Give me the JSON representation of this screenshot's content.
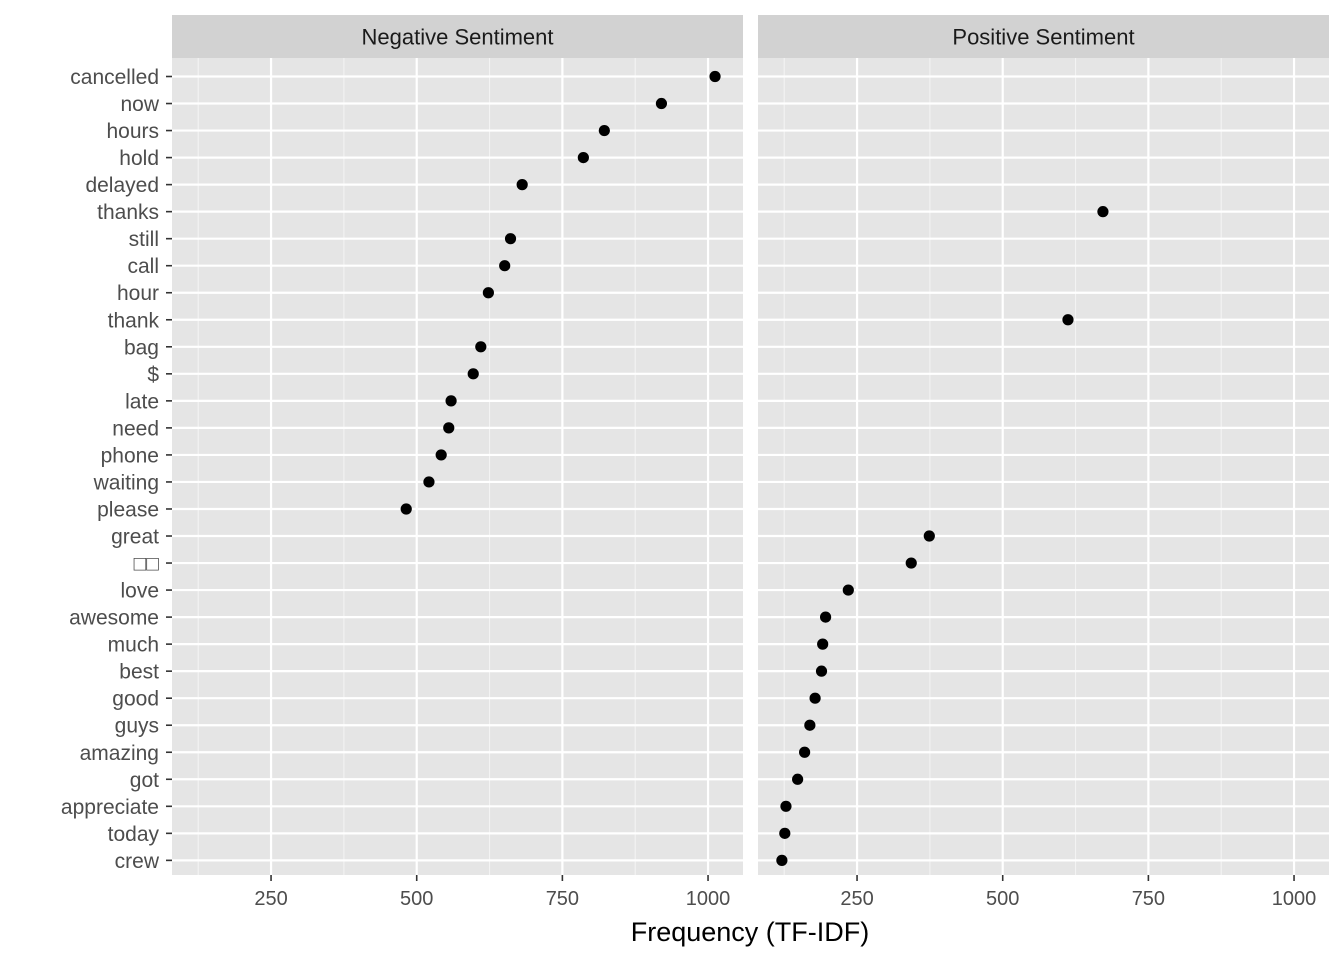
{
  "chart_data": {
    "type": "scatter",
    "xlabel": "Frequency (TF-IDF)",
    "ylabel": "",
    "xlim": [
      80,
      1060
    ],
    "x_ticks": [
      250,
      500,
      750,
      1000
    ],
    "grid": true,
    "colors": {
      "panel_background": "#e5e5e5",
      "grid": "#ffffff",
      "strip_background": "#d2d2d2",
      "point": "#000000"
    },
    "categories": [
      "cancelled",
      "now",
      "hours",
      "hold",
      "delayed",
      "thanks",
      "still",
      "call",
      "hour",
      "thank",
      "bag",
      "$",
      "late",
      "need",
      "phone",
      "waiting",
      "please",
      "great",
      "□□",
      "love",
      "awesome",
      "much",
      "best",
      "good",
      "guys",
      "amazing",
      "got",
      "appreciate",
      "today",
      "crew"
    ],
    "panels": [
      {
        "title": "Negative Sentiment",
        "points": [
          {
            "word": "cancelled",
            "x": 1012
          },
          {
            "word": "now",
            "x": 920
          },
          {
            "word": "hours",
            "x": 822
          },
          {
            "word": "hold",
            "x": 786
          },
          {
            "word": "delayed",
            "x": 681
          },
          {
            "word": "still",
            "x": 661
          },
          {
            "word": "call",
            "x": 651
          },
          {
            "word": "hour",
            "x": 623
          },
          {
            "word": "bag",
            "x": 610
          },
          {
            "word": "$",
            "x": 597
          },
          {
            "word": "late",
            "x": 559
          },
          {
            "word": "need",
            "x": 555
          },
          {
            "word": "phone",
            "x": 542
          },
          {
            "word": "waiting",
            "x": 521
          },
          {
            "word": "please",
            "x": 482
          }
        ]
      },
      {
        "title": "Positive Sentiment",
        "points": [
          {
            "word": "thanks",
            "x": 672
          },
          {
            "word": "thank",
            "x": 612
          },
          {
            "word": "great",
            "x": 374
          },
          {
            "word": "□□",
            "x": 343
          },
          {
            "word": "love",
            "x": 235
          },
          {
            "word": "awesome",
            "x": 196
          },
          {
            "word": "much",
            "x": 191
          },
          {
            "word": "best",
            "x": 189
          },
          {
            "word": "good",
            "x": 178
          },
          {
            "word": "guys",
            "x": 169
          },
          {
            "word": "amazing",
            "x": 160
          },
          {
            "word": "got",
            "x": 148
          },
          {
            "word": "appreciate",
            "x": 128
          },
          {
            "word": "today",
            "x": 126
          },
          {
            "word": "crew",
            "x": 121
          }
        ]
      }
    ]
  }
}
